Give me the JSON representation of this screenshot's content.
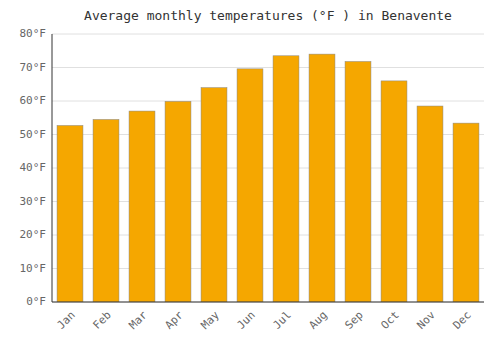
{
  "chart_data": {
    "type": "bar",
    "title": "Average monthly temperatures (°F ) in Benavente",
    "categories": [
      "Jan",
      "Feb",
      "Mar",
      "Apr",
      "May",
      "Jun",
      "Jul",
      "Aug",
      "Sep",
      "Oct",
      "Nov",
      "Dec"
    ],
    "values": [
      52.7,
      54.5,
      57.0,
      59.9,
      64.0,
      69.6,
      73.5,
      74.0,
      71.8,
      66.0,
      58.5,
      53.4
    ],
    "color": "#F5A700",
    "ylim": [
      0,
      80
    ],
    "yticks": [
      {
        "value": 0,
        "label": "0°F"
      },
      {
        "value": 10,
        "label": "10°F"
      },
      {
        "value": 20,
        "label": "20°F"
      },
      {
        "value": 30,
        "label": "30°F"
      },
      {
        "value": 40,
        "label": "40°F"
      },
      {
        "value": 50,
        "label": "50°F"
      },
      {
        "value": 60,
        "label": "60°F"
      },
      {
        "value": 70,
        "label": "70°F"
      },
      {
        "value": 80,
        "label": "80°F"
      }
    ],
    "grid": true
  }
}
